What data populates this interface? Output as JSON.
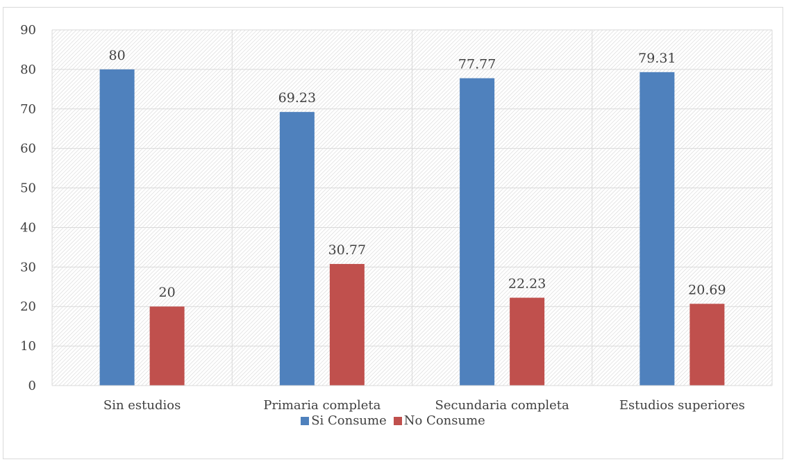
{
  "chart_data": {
    "type": "bar",
    "title": "",
    "xlabel": "",
    "ylabel": "",
    "categories": [
      "Sin estudios",
      "Primaria completa",
      "Secundaria completa",
      "Estudios superiores"
    ],
    "series": [
      {
        "name": "Si Consume",
        "color": "#4f81bd",
        "values": [
          80,
          69.23,
          77.77,
          79.31
        ],
        "labels": [
          "80",
          "69.23",
          "77.77",
          "79.31"
        ]
      },
      {
        "name": "No Consume",
        "color": "#c0504d",
        "values": [
          20,
          30.77,
          22.23,
          20.69
        ],
        "labels": [
          "20",
          "30.77",
          "22.23",
          "20.69"
        ]
      }
    ],
    "ylim": [
      0,
      90
    ],
    "yticks": [
      "0",
      "10",
      "20",
      "30",
      "40",
      "50",
      "60",
      "70",
      "80",
      "90"
    ],
    "grid": true,
    "legend_position": "bottom",
    "plot_background": "diagonal-hatch"
  }
}
